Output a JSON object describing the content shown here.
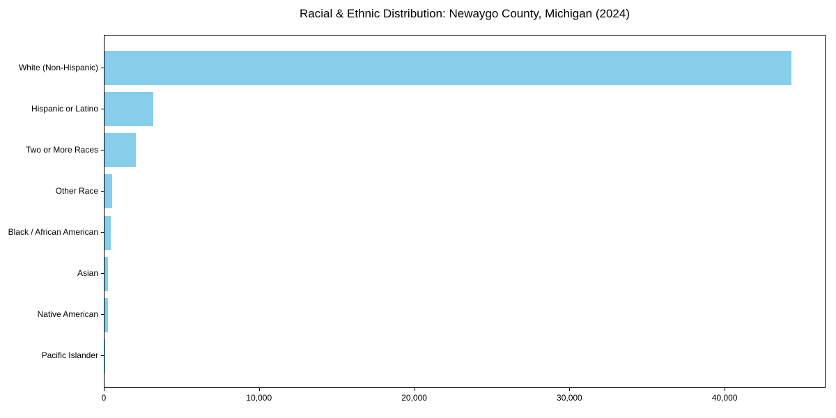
{
  "chart_data": {
    "type": "bar",
    "orientation": "horizontal",
    "title": "Racial & Ethnic Distribution: Newaygo County, Michigan (2024)",
    "categories": [
      "White (Non-Hispanic)",
      "Hispanic or Latino",
      "Two or More Races",
      "Other Race",
      "Black / African American",
      "Asian",
      "Native American",
      "Pacific Islander"
    ],
    "values": [
      44260,
      3150,
      2020,
      480,
      420,
      240,
      210,
      15
    ],
    "xlabel": "",
    "ylabel": "",
    "xlim": [
      0,
      46500
    ],
    "x_ticks": [
      0,
      10000,
      20000,
      30000,
      40000
    ],
    "x_tick_labels": [
      "0",
      "10,000",
      "20,000",
      "30,000",
      "40,000"
    ],
    "bar_color": "#87CEEB",
    "text_color": "#000000",
    "spine_color": "#000000",
    "grid": false,
    "legend_position": "none"
  }
}
